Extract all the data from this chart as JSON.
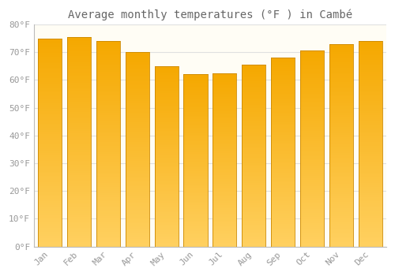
{
  "title": "Average monthly temperatures (°F ) in Cambé",
  "months": [
    "Jan",
    "Feb",
    "Mar",
    "Apr",
    "May",
    "Jun",
    "Jul",
    "Aug",
    "Sep",
    "Oct",
    "Nov",
    "Dec"
  ],
  "values": [
    75.0,
    75.5,
    74.0,
    70.0,
    65.0,
    62.0,
    62.5,
    65.5,
    68.0,
    70.5,
    73.0,
    74.0
  ],
  "bar_color_top": "#F5A800",
  "bar_color_bottom": "#FFD060",
  "edge_color": "#CC8800",
  "background_color": "#FFFFFF",
  "plot_bg_color": "#FFFDF5",
  "grid_color": "#E0E0E0",
  "tick_label_color": "#999999",
  "title_color": "#666666",
  "ylim": [
    0,
    80
  ],
  "yticks": [
    0,
    10,
    20,
    30,
    40,
    50,
    60,
    70,
    80
  ],
  "title_fontsize": 10,
  "tick_fontsize": 8,
  "bar_width": 0.82
}
